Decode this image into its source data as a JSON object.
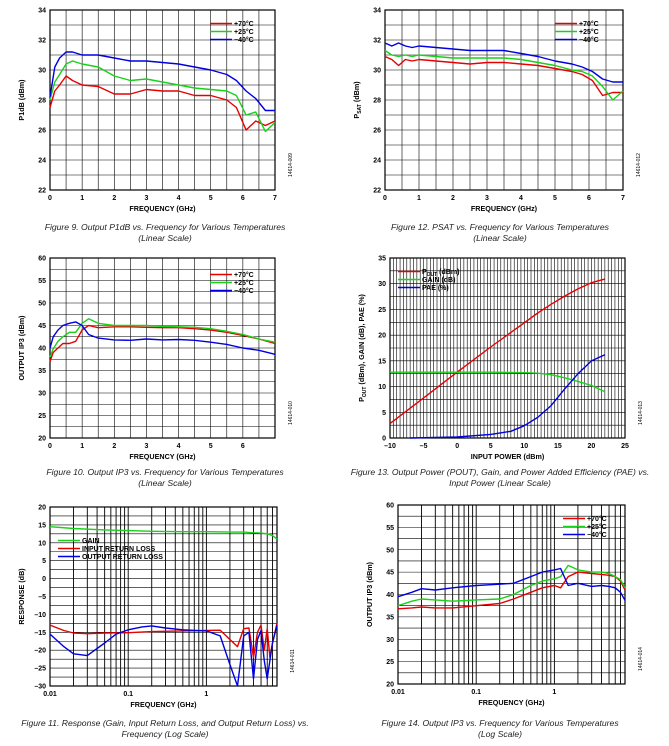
{
  "chart_data": [
    {
      "id": "fig9",
      "type": "line",
      "title": "",
      "xlabel": "FREQUENCY (GHz)",
      "ylabel": "P1dB (dBm)",
      "xscale": "linear",
      "xlim": [
        0,
        7
      ],
      "ylim": [
        22,
        34
      ],
      "xticks": [
        0,
        1,
        2,
        3,
        4,
        5,
        6,
        7
      ],
      "yticks": [
        22,
        24,
        26,
        28,
        30,
        32,
        34
      ],
      "grid": true,
      "legend_position": "top-right",
      "side_code": "14614-009",
      "caption": "Figure 9. Output P1dB vs. Frequency for Various Temperatures",
      "caption_sub": "(Linear Scale)",
      "series": [
        {
          "name": "+70°C",
          "color": "#e60000",
          "x": [
            0,
            0.15,
            0.3,
            0.5,
            0.7,
            1,
            1.5,
            2,
            2.5,
            3,
            3.5,
            4,
            4.5,
            5,
            5.5,
            5.8,
            6.1,
            6.4,
            6.7,
            7
          ],
          "y": [
            27.5,
            28.6,
            29.0,
            29.6,
            29.3,
            29.0,
            28.9,
            28.4,
            28.4,
            28.7,
            28.6,
            28.6,
            28.3,
            28.3,
            28.0,
            27.5,
            26.0,
            26.6,
            26.3,
            26.6
          ]
        },
        {
          "name": "+25°C",
          "color": "#19d119",
          "x": [
            0,
            0.15,
            0.3,
            0.5,
            0.7,
            1,
            1.5,
            2,
            2.5,
            3,
            3.5,
            4,
            4.5,
            5,
            5.5,
            5.8,
            6.1,
            6.4,
            6.7,
            7
          ],
          "y": [
            28.0,
            29.2,
            29.7,
            30.4,
            30.6,
            30.4,
            30.2,
            29.6,
            29.3,
            29.4,
            29.2,
            29.0,
            28.8,
            28.7,
            28.6,
            28.3,
            27.0,
            27.2,
            25.9,
            26.5
          ]
        },
        {
          "name": "−40°C",
          "color": "#0000e0",
          "x": [
            0,
            0.15,
            0.3,
            0.5,
            0.7,
            1,
            1.5,
            2,
            2.5,
            3,
            3.5,
            4,
            4.5,
            5,
            5.5,
            5.8,
            6.1,
            6.4,
            6.7,
            7
          ],
          "y": [
            28.2,
            30.2,
            30.8,
            31.2,
            31.2,
            31.0,
            31.0,
            30.8,
            30.6,
            30.6,
            30.5,
            30.4,
            30.2,
            30.0,
            29.7,
            29.3,
            28.6,
            28.1,
            27.3,
            27.3
          ]
        }
      ]
    },
    {
      "id": "fig12",
      "type": "line",
      "title": "",
      "xlabel": "FREQUENCY (GHz)",
      "ylabel": "PSAT (dBm)",
      "ylabel_main": "P",
      "ylabel_sub": "SAT",
      "ylabel_rest": " (dBm)",
      "xscale": "linear",
      "xlim": [
        0,
        7
      ],
      "ylim": [
        22,
        34
      ],
      "xticks": [
        0,
        1,
        2,
        3,
        4,
        5,
        6,
        7
      ],
      "yticks": [
        22,
        24,
        26,
        28,
        30,
        32,
        34
      ],
      "grid": true,
      "legend_position": "top-right",
      "side_code": "14614-012",
      "caption": "Figure 12. PSAT vs. Frequency for Various Temperatures",
      "caption_sub": "(Linear Scale)",
      "series": [
        {
          "name": "+70°C",
          "color": "#e60000",
          "x": [
            0,
            0.2,
            0.4,
            0.6,
            0.8,
            1,
            1.5,
            2,
            2.5,
            3,
            3.5,
            4,
            4.5,
            5,
            5.5,
            5.8,
            6.1,
            6.4,
            6.7,
            7
          ],
          "y": [
            30.9,
            30.7,
            30.3,
            30.7,
            30.6,
            30.7,
            30.6,
            30.5,
            30.4,
            30.5,
            30.5,
            30.4,
            30.3,
            30.1,
            29.9,
            29.7,
            29.3,
            28.3,
            28.5,
            28.5
          ]
        },
        {
          "name": "+25°C",
          "color": "#19d119",
          "x": [
            0,
            0.2,
            0.4,
            0.6,
            0.8,
            1,
            1.5,
            2,
            2.5,
            3,
            3.5,
            4,
            4.5,
            5,
            5.5,
            5.8,
            6.1,
            6.4,
            6.7,
            7
          ],
          "y": [
            31.3,
            31.0,
            30.9,
            31.0,
            30.9,
            31.0,
            30.9,
            30.8,
            30.8,
            30.8,
            30.8,
            30.7,
            30.5,
            30.3,
            30.0,
            29.9,
            29.6,
            28.9,
            28.0,
            28.6
          ]
        },
        {
          "name": "−40°C",
          "color": "#0000e0",
          "x": [
            0,
            0.2,
            0.4,
            0.6,
            0.8,
            1,
            1.5,
            2,
            2.5,
            3,
            3.5,
            4,
            4.5,
            5,
            5.5,
            5.8,
            6.1,
            6.4,
            6.7,
            7
          ],
          "y": [
            31.8,
            31.6,
            31.8,
            31.6,
            31.5,
            31.6,
            31.5,
            31.4,
            31.3,
            31.3,
            31.3,
            31.1,
            30.9,
            30.6,
            30.4,
            30.2,
            29.9,
            29.4,
            29.2,
            29.2
          ]
        }
      ]
    },
    {
      "id": "fig10",
      "type": "line",
      "title": "",
      "xlabel": "FREQUENCY (GHz)",
      "ylabel": "OUTPUT IP3 (dBm)",
      "xscale": "linear",
      "xlim": [
        0,
        7
      ],
      "ylim": [
        20,
        60
      ],
      "xticks": [
        0,
        1,
        2,
        3,
        4,
        5,
        6
      ],
      "yticks": [
        20,
        25,
        30,
        35,
        40,
        45,
        50,
        55,
        60
      ],
      "grid": true,
      "legend_position": "top-right",
      "side_code": "14614-010",
      "caption": "Figure 10. Output IP3 vs. Frequency for Various Temperatures",
      "caption_sub": "(Linear Scale)",
      "series": [
        {
          "name": "+70°C",
          "color": "#e60000",
          "x": [
            0,
            0.1,
            0.25,
            0.4,
            0.6,
            0.8,
            1,
            1.2,
            1.5,
            2,
            2.5,
            3,
            3.5,
            4,
            4.5,
            5,
            5.5,
            6,
            6.5,
            7
          ],
          "y": [
            37.0,
            39.0,
            40.0,
            41.0,
            41.0,
            41.5,
            44.0,
            45.0,
            44.5,
            44.7,
            44.7,
            44.6,
            44.5,
            44.5,
            44.3,
            44.0,
            43.5,
            42.8,
            42.0,
            41.0
          ]
        },
        {
          "name": "+25°C",
          "color": "#19d119",
          "x": [
            0,
            0.1,
            0.25,
            0.4,
            0.6,
            0.8,
            1,
            1.2,
            1.5,
            2,
            2.5,
            3,
            3.5,
            4,
            4.5,
            5,
            5.5,
            6,
            6.5,
            7
          ],
          "y": [
            38.0,
            39.8,
            41.5,
            42.5,
            43.5,
            43.5,
            45.5,
            46.5,
            45.5,
            45.0,
            45.0,
            45.0,
            44.8,
            44.7,
            44.6,
            44.3,
            43.7,
            43.0,
            42.0,
            41.3
          ]
        },
        {
          "name": "−40°C",
          "color": "#0000e0",
          "x": [
            0,
            0.1,
            0.25,
            0.4,
            0.6,
            0.8,
            1,
            1.2,
            1.5,
            2,
            2.5,
            3,
            3.5,
            4,
            4.5,
            5,
            5.5,
            6,
            6.5,
            7
          ],
          "y": [
            40.0,
            42.5,
            44.0,
            45.0,
            45.5,
            45.8,
            45.0,
            43.0,
            42.2,
            41.8,
            41.7,
            42.0,
            41.8,
            41.9,
            41.7,
            41.3,
            40.8,
            40.0,
            39.5,
            38.6
          ]
        }
      ]
    },
    {
      "id": "fig13",
      "type": "line",
      "title": "",
      "xlabel": "INPUT POWER (dBm)",
      "ylabel": "POUT (dBm), GAIN (dB), PAE (%)",
      "ylabel_main": "P",
      "ylabel_sub": "OUT",
      "ylabel_rest": " (dBm), GAIN (dB), PAE (%)",
      "xscale": "linear",
      "xlim": [
        -10,
        25
      ],
      "ylim": [
        0,
        35
      ],
      "xticks": [
        -10,
        -5,
        0,
        5,
        10,
        15,
        20,
        25
      ],
      "xtick_labels": [
        "–10",
        "–5",
        "0",
        "5",
        "10",
        "15",
        "20",
        "25"
      ],
      "yticks": [
        0,
        5,
        10,
        15,
        20,
        25,
        30,
        35
      ],
      "grid": true,
      "legend_position": "top-left",
      "side_code": "14614-013",
      "caption": "Figure 13. Output Power (POUT), Gain, and Power Added Efficiency (PAE) vs.",
      "caption_sub": "Input Power (Linear Scale)",
      "series": [
        {
          "name": "POUT (dBm)",
          "name_main": "P",
          "name_sub": "OUT",
          "name_rest": " (dBm)",
          "color": "#e60000",
          "x": [
            -10,
            -5,
            0,
            5,
            10,
            12,
            14,
            16,
            18,
            20,
            22
          ],
          "y": [
            2.8,
            7.8,
            12.8,
            17.7,
            22.4,
            24.3,
            26.0,
            27.6,
            29.0,
            30.2,
            30.9
          ]
        },
        {
          "name": "GAIN (dB)",
          "color": "#19d119",
          "x": [
            -10,
            -5,
            0,
            5,
            10,
            12,
            14,
            16,
            18,
            20,
            22
          ],
          "y": [
            12.8,
            12.8,
            12.8,
            12.8,
            12.7,
            12.6,
            12.3,
            11.7,
            11.0,
            10.2,
            9.0
          ]
        },
        {
          "name": "PAE (%)",
          "color": "#0000e0",
          "x": [
            -7,
            -5,
            0,
            5,
            8,
            10,
            12,
            14,
            16,
            18,
            20,
            22
          ],
          "y": [
            0,
            0.05,
            0.2,
            0.7,
            1.3,
            2.4,
            4.0,
            6.3,
            9.5,
            12.5,
            15.0,
            16.2
          ]
        }
      ]
    },
    {
      "id": "fig11",
      "type": "line",
      "title": "",
      "xlabel": "FREQUENCY (GHz)",
      "ylabel": "RESPONSE (dB)",
      "xscale": "log",
      "xlim": [
        0.01,
        8
      ],
      "ylim": [
        -30,
        20
      ],
      "xticks": [
        0.01,
        0.1,
        1
      ],
      "xtick_labels": [
        "0.01",
        "0.1",
        "1"
      ],
      "yticks": [
        -30,
        -25,
        -20,
        -15,
        -10,
        -5,
        0,
        5,
        10,
        15,
        20
      ],
      "ytick_labels": [
        "–30",
        "–25",
        "–20",
        "–15",
        "–10",
        "–5",
        "0",
        "5",
        "10",
        "15",
        "20"
      ],
      "grid": true,
      "legend_position": "center-left",
      "side_code": "14614-011",
      "caption": "Figure 11. Response (Gain, Input Return Loss, and Output Return Loss) vs.",
      "caption_sub": "Frequency (Log Scale)",
      "series": [
        {
          "name": "GAIN",
          "color": "#19d119",
          "x": [
            0.01,
            0.02,
            0.05,
            0.1,
            0.2,
            0.5,
            1,
            2,
            3,
            4,
            5,
            6,
            7,
            8
          ],
          "y": [
            14.5,
            14.0,
            13.6,
            13.4,
            13.2,
            13.1,
            13.1,
            13.0,
            13.0,
            12.8,
            12.7,
            12.5,
            12.0,
            11.0
          ]
        },
        {
          "name": "INPUT RETURN LOSS",
          "color": "#e60000",
          "x": [
            0.01,
            0.015,
            0.02,
            0.03,
            0.05,
            0.1,
            0.2,
            0.5,
            1,
            1.5,
            2,
            2.5,
            3,
            3.5,
            4,
            4.5,
            5,
            5.5,
            6,
            6.5,
            7,
            8
          ],
          "y": [
            -13.0,
            -14.5,
            -15.2,
            -15.4,
            -15.2,
            -15.1,
            -14.8,
            -14.6,
            -14.5,
            -14.4,
            -17.0,
            -19.0,
            -14.0,
            -13.8,
            -22.0,
            -15.0,
            -13.0,
            -20.0,
            -14.0,
            -22.0,
            -18.0,
            -12.5
          ]
        },
        {
          "name": "OUTPUT RETURN LOSS",
          "color": "#0000e0",
          "x": [
            0.01,
            0.015,
            0.02,
            0.03,
            0.05,
            0.07,
            0.1,
            0.15,
            0.2,
            0.3,
            0.5,
            1,
            1.5,
            2,
            2.5,
            3,
            3.5,
            4,
            4.5,
            5,
            5.5,
            6,
            7,
            8
          ],
          "y": [
            -15.5,
            -19.0,
            -21.0,
            -21.5,
            -18.0,
            -15.5,
            -14.3,
            -13.5,
            -13.2,
            -13.8,
            -14.3,
            -14.6,
            -16.0,
            -24.0,
            -30.0,
            -16.0,
            -15.0,
            -28.0,
            -17.0,
            -14.5,
            -23.0,
            -28.0,
            -18.0,
            -13.0
          ]
        }
      ]
    },
    {
      "id": "fig14",
      "type": "line",
      "title": "",
      "xlabel": "FREQUENCY (GHz)",
      "ylabel": "OUTPUT IP3 (dBm)",
      "xscale": "log",
      "xlim": [
        0.01,
        8
      ],
      "ylim": [
        20,
        60
      ],
      "xticks": [
        0.01,
        0.1,
        1
      ],
      "xtick_labels": [
        "0.01",
        "0.1",
        "1"
      ],
      "yticks": [
        20,
        25,
        30,
        35,
        40,
        45,
        50,
        55,
        60
      ],
      "grid": true,
      "legend_position": "top-right",
      "side_code": "14614-014",
      "caption": "Figure 14. Output IP3 vs. Frequency for Various Temperatures",
      "caption_sub": "(Log Scale)",
      "series": [
        {
          "name": "+70°C",
          "color": "#e60000",
          "x": [
            0.01,
            0.015,
            0.02,
            0.03,
            0.05,
            0.1,
            0.2,
            0.3,
            0.5,
            0.7,
            1,
            1.2,
            1.5,
            2,
            3,
            4,
            5,
            6,
            7,
            8
          ],
          "y": [
            36.8,
            37.0,
            37.2,
            37.0,
            37.0,
            37.5,
            38.0,
            39.0,
            40.5,
            41.5,
            42.0,
            41.5,
            44.0,
            45.0,
            44.7,
            44.5,
            44.3,
            44.0,
            43.0,
            41.0
          ]
        },
        {
          "name": "+25°C",
          "color": "#19d119",
          "x": [
            0.01,
            0.015,
            0.02,
            0.03,
            0.05,
            0.1,
            0.2,
            0.3,
            0.5,
            0.7,
            1,
            1.2,
            1.5,
            2,
            3,
            4,
            5,
            6,
            7,
            8
          ],
          "y": [
            37.5,
            38.5,
            39.0,
            38.8,
            38.5,
            38.8,
            39.0,
            40.0,
            42.0,
            43.0,
            43.5,
            44.0,
            46.5,
            45.5,
            45.0,
            45.0,
            44.7,
            44.0,
            43.3,
            41.5
          ]
        },
        {
          "name": "−40°C",
          "color": "#0000e0",
          "x": [
            0.01,
            0.015,
            0.02,
            0.03,
            0.05,
            0.1,
            0.2,
            0.3,
            0.5,
            0.7,
            1,
            1.2,
            1.5,
            2,
            3,
            4,
            5,
            6,
            7,
            8
          ],
          "y": [
            39.5,
            40.5,
            41.3,
            41.0,
            41.5,
            42.0,
            42.3,
            42.5,
            44.0,
            45.0,
            45.5,
            45.8,
            42.0,
            42.5,
            41.8,
            42.0,
            41.8,
            41.5,
            40.5,
            38.7
          ]
        }
      ]
    }
  ]
}
